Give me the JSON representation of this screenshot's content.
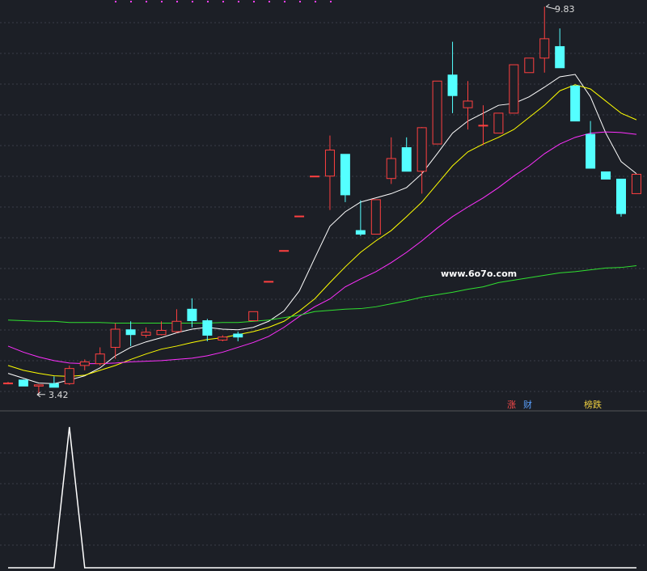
{
  "chart_data": {
    "type": "candlestick",
    "watermark": "www.6o7o.com",
    "legend": [
      {
        "text": "涨",
        "color": "#ff4a4a"
      },
      {
        "text": "财",
        "color": "#5aa0ff"
      },
      {
        "text": "榜跌",
        "color": "#f0d040"
      }
    ],
    "ylim": [
      3.15,
      9.94
    ],
    "up_color": "#ff4040",
    "down_color": "#54ffff",
    "open": [
      3.61,
      3.66,
      3.56,
      3.6,
      3.6,
      3.9,
      3.93,
      4.2,
      4.49,
      4.4,
      4.41,
      4.46,
      4.83,
      4.64,
      4.32,
      4.42,
      4.64,
      5.29,
      5.8,
      6.37,
      7.03,
      7.03,
      7.39,
      6.13,
      6.07,
      6.99,
      7.5,
      7.11,
      7.56,
      8.7,
      8.16,
      7.87,
      7.74,
      8.07,
      8.74,
      8.98,
      9.17,
      8.52,
      7.72,
      7.1,
      6.98,
      6.74
    ],
    "high": [
      3.63,
      3.67,
      3.58,
      3.72,
      3.9,
      4.0,
      4.2,
      4.6,
      4.63,
      4.53,
      4.63,
      4.83,
      5.01,
      4.67,
      4.4,
      4.46,
      4.79,
      5.29,
      5.8,
      6.37,
      7.03,
      7.7,
      7.39,
      6.63,
      6.64,
      7.67,
      7.67,
      7.84,
      8.6,
      9.25,
      8.6,
      8.2,
      8.07,
      8.87,
      8.98,
      9.83,
      9.47,
      8.52,
      7.94,
      7.1,
      6.98,
      7.06
    ],
    "low": [
      3.59,
      3.56,
      3.42,
      3.54,
      3.58,
      3.82,
      3.9,
      4.01,
      4.22,
      4.36,
      4.4,
      4.44,
      4.53,
      4.3,
      4.3,
      4.3,
      4.64,
      5.29,
      5.8,
      6.37,
      7.03,
      6.47,
      6.6,
      6.04,
      6.07,
      6.9,
      7.11,
      6.74,
      7.56,
      8.07,
      7.8,
      7.54,
      7.74,
      8.07,
      8.74,
      8.74,
      8.82,
      7.94,
      7.16,
      6.98,
      6.36,
      6.74
    ],
    "close": [
      3.61,
      3.56,
      3.58,
      3.54,
      3.85,
      3.96,
      4.09,
      4.5,
      4.41,
      4.45,
      4.48,
      4.63,
      4.64,
      4.4,
      4.37,
      4.37,
      4.79,
      5.29,
      5.8,
      6.37,
      7.03,
      7.46,
      6.72,
      6.07,
      6.64,
      7.32,
      7.11,
      7.83,
      8.6,
      8.36,
      8.27,
      7.87,
      8.07,
      8.87,
      8.98,
      9.3,
      8.82,
      7.94,
      7.16,
      6.98,
      6.41,
      7.06
    ],
    "series": [
      {
        "color": "#ffffff",
        "values": [
          3.77,
          3.69,
          3.61,
          3.6,
          3.66,
          3.73,
          3.86,
          4.06,
          4.2,
          4.29,
          4.36,
          4.44,
          4.5,
          4.53,
          4.5,
          4.49,
          4.53,
          4.63,
          4.8,
          5.13,
          5.67,
          6.2,
          6.44,
          6.6,
          6.67,
          6.74,
          6.84,
          7.07,
          7.4,
          7.74,
          7.94,
          8.07,
          8.2,
          8.23,
          8.34,
          8.5,
          8.67,
          8.71,
          8.34,
          7.74,
          7.27,
          7.07
        ]
      },
      {
        "color": "#ffff00",
        "values": [
          3.9,
          3.82,
          3.77,
          3.73,
          3.72,
          3.74,
          3.82,
          3.9,
          4.0,
          4.09,
          4.17,
          4.22,
          4.28,
          4.33,
          4.36,
          4.41,
          4.46,
          4.53,
          4.63,
          4.8,
          5.0,
          5.27,
          5.53,
          5.77,
          5.96,
          6.13,
          6.36,
          6.6,
          6.9,
          7.2,
          7.43,
          7.56,
          7.67,
          7.8,
          8.0,
          8.2,
          8.44,
          8.54,
          8.47,
          8.27,
          8.07,
          7.96
        ]
      },
      {
        "color": "#ff30ff",
        "values": [
          4.22,
          4.12,
          4.04,
          3.98,
          3.94,
          3.93,
          3.93,
          3.94,
          3.96,
          3.97,
          3.98,
          4.0,
          4.02,
          4.06,
          4.12,
          4.2,
          4.28,
          4.38,
          4.53,
          4.71,
          4.87,
          5.0,
          5.2,
          5.33,
          5.45,
          5.6,
          5.77,
          5.96,
          6.17,
          6.36,
          6.52,
          6.67,
          6.84,
          7.03,
          7.2,
          7.4,
          7.56,
          7.67,
          7.74,
          7.76,
          7.75,
          7.72
        ]
      },
      {
        "color": "#30e030",
        "values": [
          4.65,
          4.64,
          4.63,
          4.63,
          4.61,
          4.61,
          4.61,
          4.6,
          4.6,
          4.6,
          4.6,
          4.6,
          4.6,
          4.6,
          4.61,
          4.61,
          4.63,
          4.65,
          4.69,
          4.73,
          4.79,
          4.81,
          4.83,
          4.84,
          4.87,
          4.92,
          4.97,
          5.03,
          5.07,
          5.11,
          5.16,
          5.2,
          5.27,
          5.31,
          5.35,
          5.39,
          5.43,
          5.45,
          5.48,
          5.51,
          5.52,
          5.55
        ]
      }
    ],
    "indicator": {
      "color": "#ffffff",
      "ylim": [
        0,
        1
      ],
      "values": [
        0,
        0,
        0,
        0,
        1,
        0,
        0,
        0,
        0,
        0,
        0,
        0,
        0,
        0,
        0,
        0,
        0,
        0,
        0,
        0,
        0,
        0,
        0,
        0,
        0,
        0,
        0,
        0,
        0,
        0,
        0,
        0,
        0,
        0,
        0,
        0,
        0,
        0,
        0,
        0,
        0,
        0
      ]
    }
  }
}
